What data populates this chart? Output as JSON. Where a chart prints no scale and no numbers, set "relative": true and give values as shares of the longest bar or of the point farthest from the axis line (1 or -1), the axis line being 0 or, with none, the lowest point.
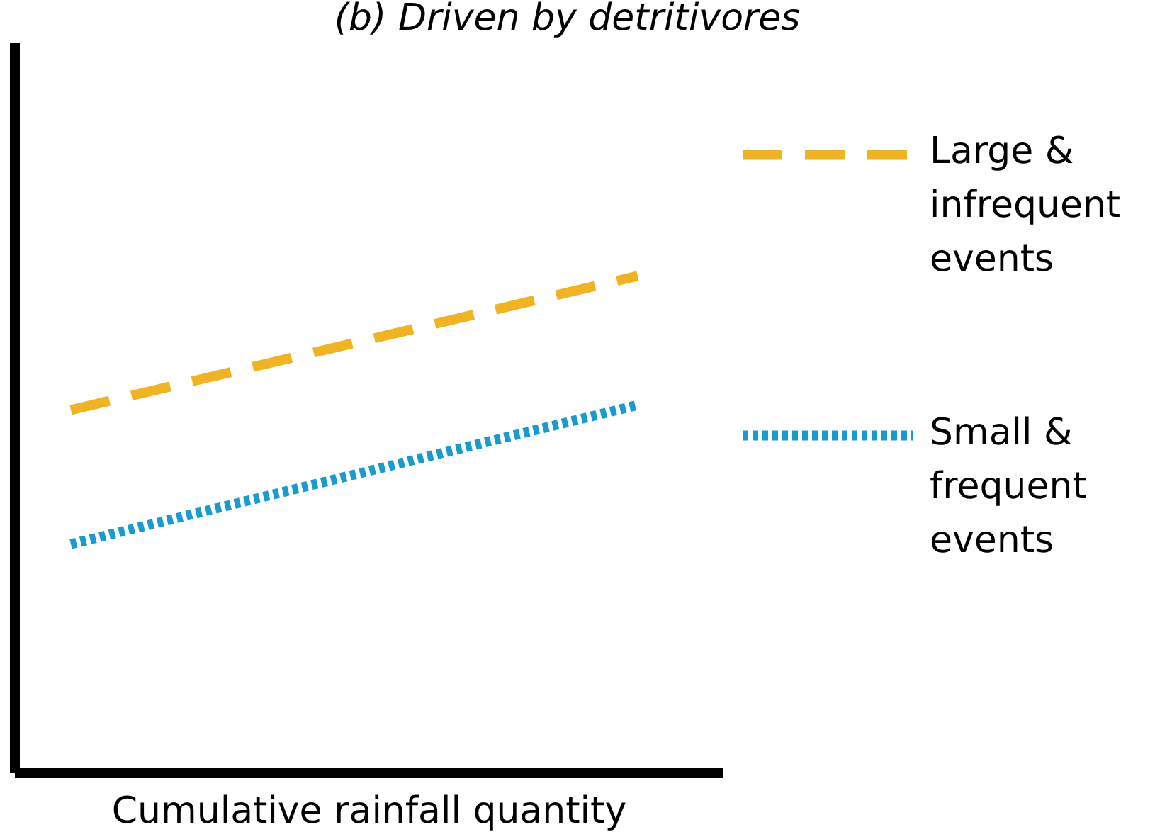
{
  "chart_data": {
    "type": "line",
    "title": "(b) Driven by detritivores",
    "xlabel": "Cumulative rainfall quantity",
    "relative": true,
    "categories": [
      null,
      null
    ],
    "legend": "right",
    "grid": false,
    "marker": "none",
    "series": [
      {
        "name": "Large & infrequent events",
        "color": "#f0b323",
        "line_style": "dashed",
        "values": [
          0.73,
          1.0
        ]
      },
      {
        "name": "Small & frequent events",
        "color": "#1a9bd0",
        "line_style": "dotted",
        "values": [
          0.46,
          0.74
        ]
      }
    ]
  }
}
